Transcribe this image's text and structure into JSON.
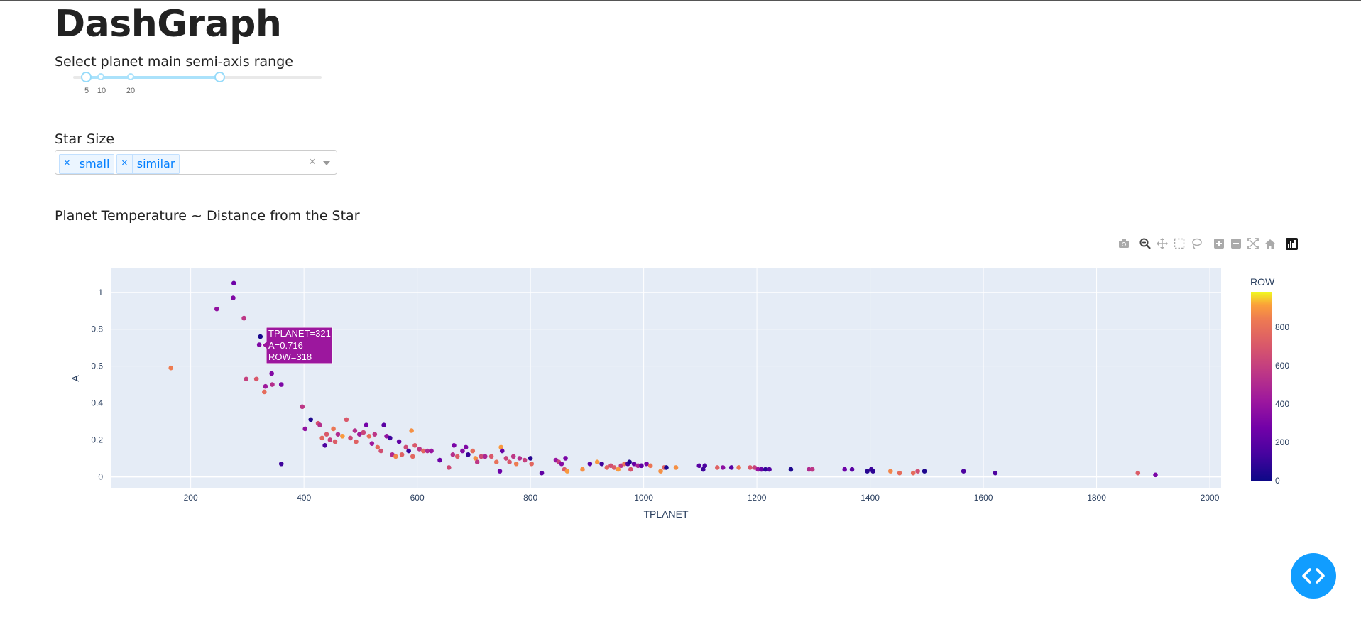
{
  "header": {
    "title": "DashGraph"
  },
  "slider": {
    "label": "Select planet main semi-axis range",
    "marks": [
      "5",
      "10",
      "20"
    ]
  },
  "star_size": {
    "label": "Star Size",
    "selected": [
      "small",
      "similar"
    ],
    "clear_symbol": "×"
  },
  "graph_title": "Planet Temperature ~ Distance from the Star",
  "modebar": {
    "icons": [
      "camera-icon",
      "zoom-icon",
      "pan-icon",
      "box-select-icon",
      "lasso-icon",
      "zoom-in-icon",
      "zoom-out-icon",
      "autoscale-icon",
      "reset-axes-icon",
      "plotly-logo-icon"
    ]
  },
  "tooltip": {
    "lines": [
      "TPLANET=321",
      "A=0.716",
      "ROW=318"
    ],
    "bg_color": "#9c179e"
  },
  "colorbar": {
    "title": "ROW",
    "ticks": [
      "800",
      "600",
      "400",
      "200",
      "0"
    ]
  },
  "chart_data": {
    "type": "scatter",
    "xlabel": "TPLANET",
    "ylabel": "A",
    "xlim": [
      60,
      2020
    ],
    "ylim": [
      -0.06,
      1.13
    ],
    "xticks": [
      200,
      400,
      600,
      800,
      1000,
      1200,
      1400,
      1600,
      1800,
      2000
    ],
    "yticks": [
      0,
      0.2,
      0.4,
      0.6,
      0.8,
      1
    ],
    "ytick_labels": [
      "0",
      "0.2",
      "0.4",
      "0.6",
      "0.8",
      "1"
    ],
    "color_scale": "plasma",
    "color_range": [
      0,
      980
    ],
    "grid": true,
    "points": [
      [
        165,
        0.59,
        840
      ],
      [
        246,
        0.91,
        380
      ],
      [
        276,
        1.05,
        260
      ],
      [
        275,
        0.97,
        320
      ],
      [
        294,
        0.86,
        560
      ],
      [
        298,
        0.53,
        600
      ],
      [
        316,
        0.53,
        700
      ],
      [
        330,
        0.46,
        780
      ],
      [
        332,
        0.49,
        420
      ],
      [
        344,
        0.5,
        520
      ],
      [
        343,
        0.56,
        330
      ],
      [
        321,
        0.716,
        318
      ],
      [
        323,
        0.76,
        30
      ],
      [
        360,
        0.5,
        310
      ],
      [
        360,
        0.07,
        120
      ],
      [
        397,
        0.38,
        560
      ],
      [
        402,
        0.26,
        380
      ],
      [
        412,
        0.31,
        40
      ],
      [
        425,
        0.29,
        680
      ],
      [
        428,
        0.28,
        520
      ],
      [
        432,
        0.21,
        760
      ],
      [
        437,
        0.17,
        160
      ],
      [
        440,
        0.23,
        700
      ],
      [
        446,
        0.2,
        600
      ],
      [
        452,
        0.26,
        820
      ],
      [
        455,
        0.19,
        720
      ],
      [
        460,
        0.23,
        500
      ],
      [
        468,
        0.22,
        900
      ],
      [
        475,
        0.31,
        700
      ],
      [
        482,
        0.21,
        640
      ],
      [
        490,
        0.25,
        520
      ],
      [
        492,
        0.19,
        740
      ],
      [
        498,
        0.23,
        440
      ],
      [
        505,
        0.24,
        620
      ],
      [
        510,
        0.28,
        280
      ],
      [
        515,
        0.22,
        800
      ],
      [
        520,
        0.18,
        420
      ],
      [
        525,
        0.23,
        560
      ],
      [
        530,
        0.16,
        780
      ],
      [
        536,
        0.14,
        660
      ],
      [
        541,
        0.28,
        200
      ],
      [
        546,
        0.22,
        380
      ],
      [
        552,
        0.21,
        120
      ],
      [
        556,
        0.12,
        500
      ],
      [
        562,
        0.11,
        860
      ],
      [
        568,
        0.19,
        220
      ],
      [
        573,
        0.12,
        740
      ],
      [
        580,
        0.16,
        640
      ],
      [
        585,
        0.14,
        120
      ],
      [
        590,
        0.25,
        880
      ],
      [
        592,
        0.11,
        760
      ],
      [
        596,
        0.17,
        700
      ],
      [
        604,
        0.15,
        560
      ],
      [
        611,
        0.14,
        760
      ],
      [
        618,
        0.14,
        500
      ],
      [
        625,
        0.14,
        400
      ],
      [
        640,
        0.09,
        260
      ],
      [
        656,
        0.05,
        640
      ],
      [
        663,
        0.12,
        520
      ],
      [
        665,
        0.17,
        300
      ],
      [
        671,
        0.11,
        720
      ],
      [
        680,
        0.14,
        340
      ],
      [
        686,
        0.16,
        320
      ],
      [
        690,
        0.12,
        100
      ],
      [
        698,
        0.14,
        780
      ],
      [
        703,
        0.1,
        880
      ],
      [
        706,
        0.08,
        560
      ],
      [
        713,
        0.11,
        640
      ],
      [
        720,
        0.11,
        480
      ],
      [
        731,
        0.11,
        700
      ],
      [
        740,
        0.08,
        800
      ],
      [
        746,
        0.03,
        260
      ],
      [
        748,
        0.16,
        900
      ],
      [
        750,
        0.14,
        240
      ],
      [
        757,
        0.1,
        620
      ],
      [
        763,
        0.08,
        700
      ],
      [
        770,
        0.11,
        560
      ],
      [
        775,
        0.07,
        840
      ],
      [
        781,
        0.1,
        520
      ],
      [
        790,
        0.09,
        600
      ],
      [
        800,
        0.1,
        60
      ],
      [
        802,
        0.07,
        760
      ],
      [
        820,
        0.02,
        220
      ],
      [
        845,
        0.09,
        400
      ],
      [
        850,
        0.08,
        600
      ],
      [
        855,
        0.07,
        340
      ],
      [
        860,
        0.04,
        720
      ],
      [
        862,
        0.1,
        300
      ],
      [
        865,
        0.03,
        900
      ],
      [
        892,
        0.04,
        880
      ],
      [
        905,
        0.07,
        200
      ],
      [
        918,
        0.08,
        900
      ],
      [
        926,
        0.07,
        120
      ],
      [
        935,
        0.05,
        760
      ],
      [
        942,
        0.06,
        660
      ],
      [
        948,
        0.05,
        720
      ],
      [
        955,
        0.04,
        900
      ],
      [
        960,
        0.06,
        560
      ],
      [
        966,
        0.07,
        800
      ],
      [
        972,
        0.07,
        160
      ],
      [
        975,
        0.08,
        40
      ],
      [
        977,
        0.04,
        680
      ],
      [
        983,
        0.07,
        240
      ],
      [
        990,
        0.06,
        460
      ],
      [
        996,
        0.06,
        220
      ],
      [
        1005,
        0.07,
        300
      ],
      [
        1012,
        0.06,
        820
      ],
      [
        1030,
        0.03,
        880
      ],
      [
        1036,
        0.05,
        740
      ],
      [
        1040,
        0.05,
        40
      ],
      [
        1057,
        0.05,
        880
      ],
      [
        1098,
        0.06,
        200
      ],
      [
        1105,
        0.04,
        120
      ],
      [
        1108,
        0.06,
        160
      ],
      [
        1130,
        0.05,
        740
      ],
      [
        1140,
        0.05,
        360
      ],
      [
        1155,
        0.05,
        200
      ],
      [
        1168,
        0.05,
        820
      ],
      [
        1188,
        0.05,
        700
      ],
      [
        1196,
        0.05,
        600
      ],
      [
        1202,
        0.04,
        400
      ],
      [
        1208,
        0.04,
        240
      ],
      [
        1215,
        0.04,
        80
      ],
      [
        1222,
        0.04,
        180
      ],
      [
        1260,
        0.04,
        40
      ],
      [
        1292,
        0.04,
        500
      ],
      [
        1298,
        0.04,
        560
      ],
      [
        1355,
        0.04,
        260
      ],
      [
        1368,
        0.04,
        200
      ],
      [
        1395,
        0.03,
        60
      ],
      [
        1402,
        0.04,
        120
      ],
      [
        1405,
        0.03,
        80
      ],
      [
        1436,
        0.03,
        860
      ],
      [
        1452,
        0.02,
        780
      ],
      [
        1476,
        0.02,
        780
      ],
      [
        1484,
        0.03,
        660
      ],
      [
        1496,
        0.03,
        40
      ],
      [
        1565,
        0.03,
        160
      ],
      [
        1621,
        0.02,
        160
      ],
      [
        1873,
        0.02,
        720
      ],
      [
        1904,
        0.01,
        300
      ]
    ]
  }
}
